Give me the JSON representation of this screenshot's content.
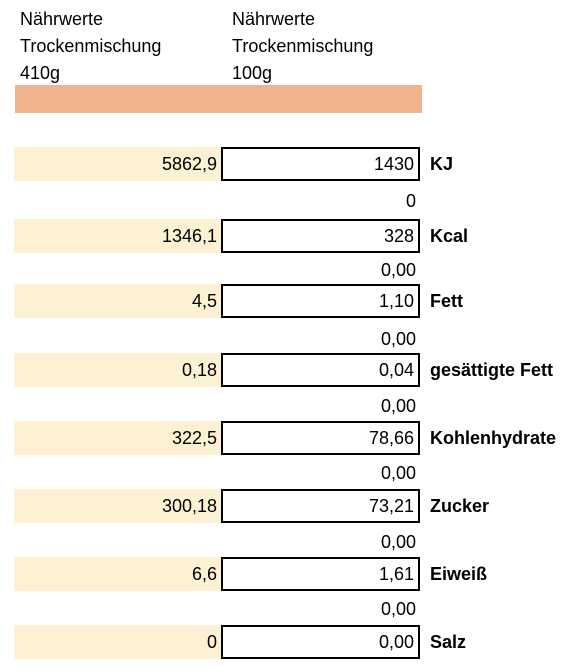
{
  "header": {
    "left": {
      "line1": "Nährwerte",
      "line2": "Trockenmischung",
      "line3": "410g"
    },
    "right": {
      "line1": "Nährwerte",
      "line2": "Trockenmischung",
      "line3": "100g"
    }
  },
  "colors": {
    "header_bar": "#efb48e",
    "value_fill": "#fcf1d3",
    "border": "#000000"
  },
  "rows": [
    {
      "v410": "5862,9",
      "v100": "1430",
      "label": "KJ",
      "below": "0"
    },
    {
      "v410": "1346,1",
      "v100": "328",
      "label": "Kcal",
      "below": "0,00"
    },
    {
      "v410": "4,5",
      "v100": "1,10",
      "label": "Fett",
      "below": "0,00"
    },
    {
      "v410": "0,18",
      "v100": "0,04",
      "label": "gesättigte Fett",
      "below": "0,00"
    },
    {
      "v410": "322,5",
      "v100": "78,66",
      "label": "Kohlenhydrate",
      "below": "0,00"
    },
    {
      "v410": "300,18",
      "v100": "73,21",
      "label": "Zucker",
      "below": "0,00"
    },
    {
      "v410": "6,6",
      "v100": "1,61",
      "label": "Eiweiß",
      "below": "0,00"
    },
    {
      "v410": "0",
      "v100": "0,00",
      "label": "Salz"
    }
  ]
}
